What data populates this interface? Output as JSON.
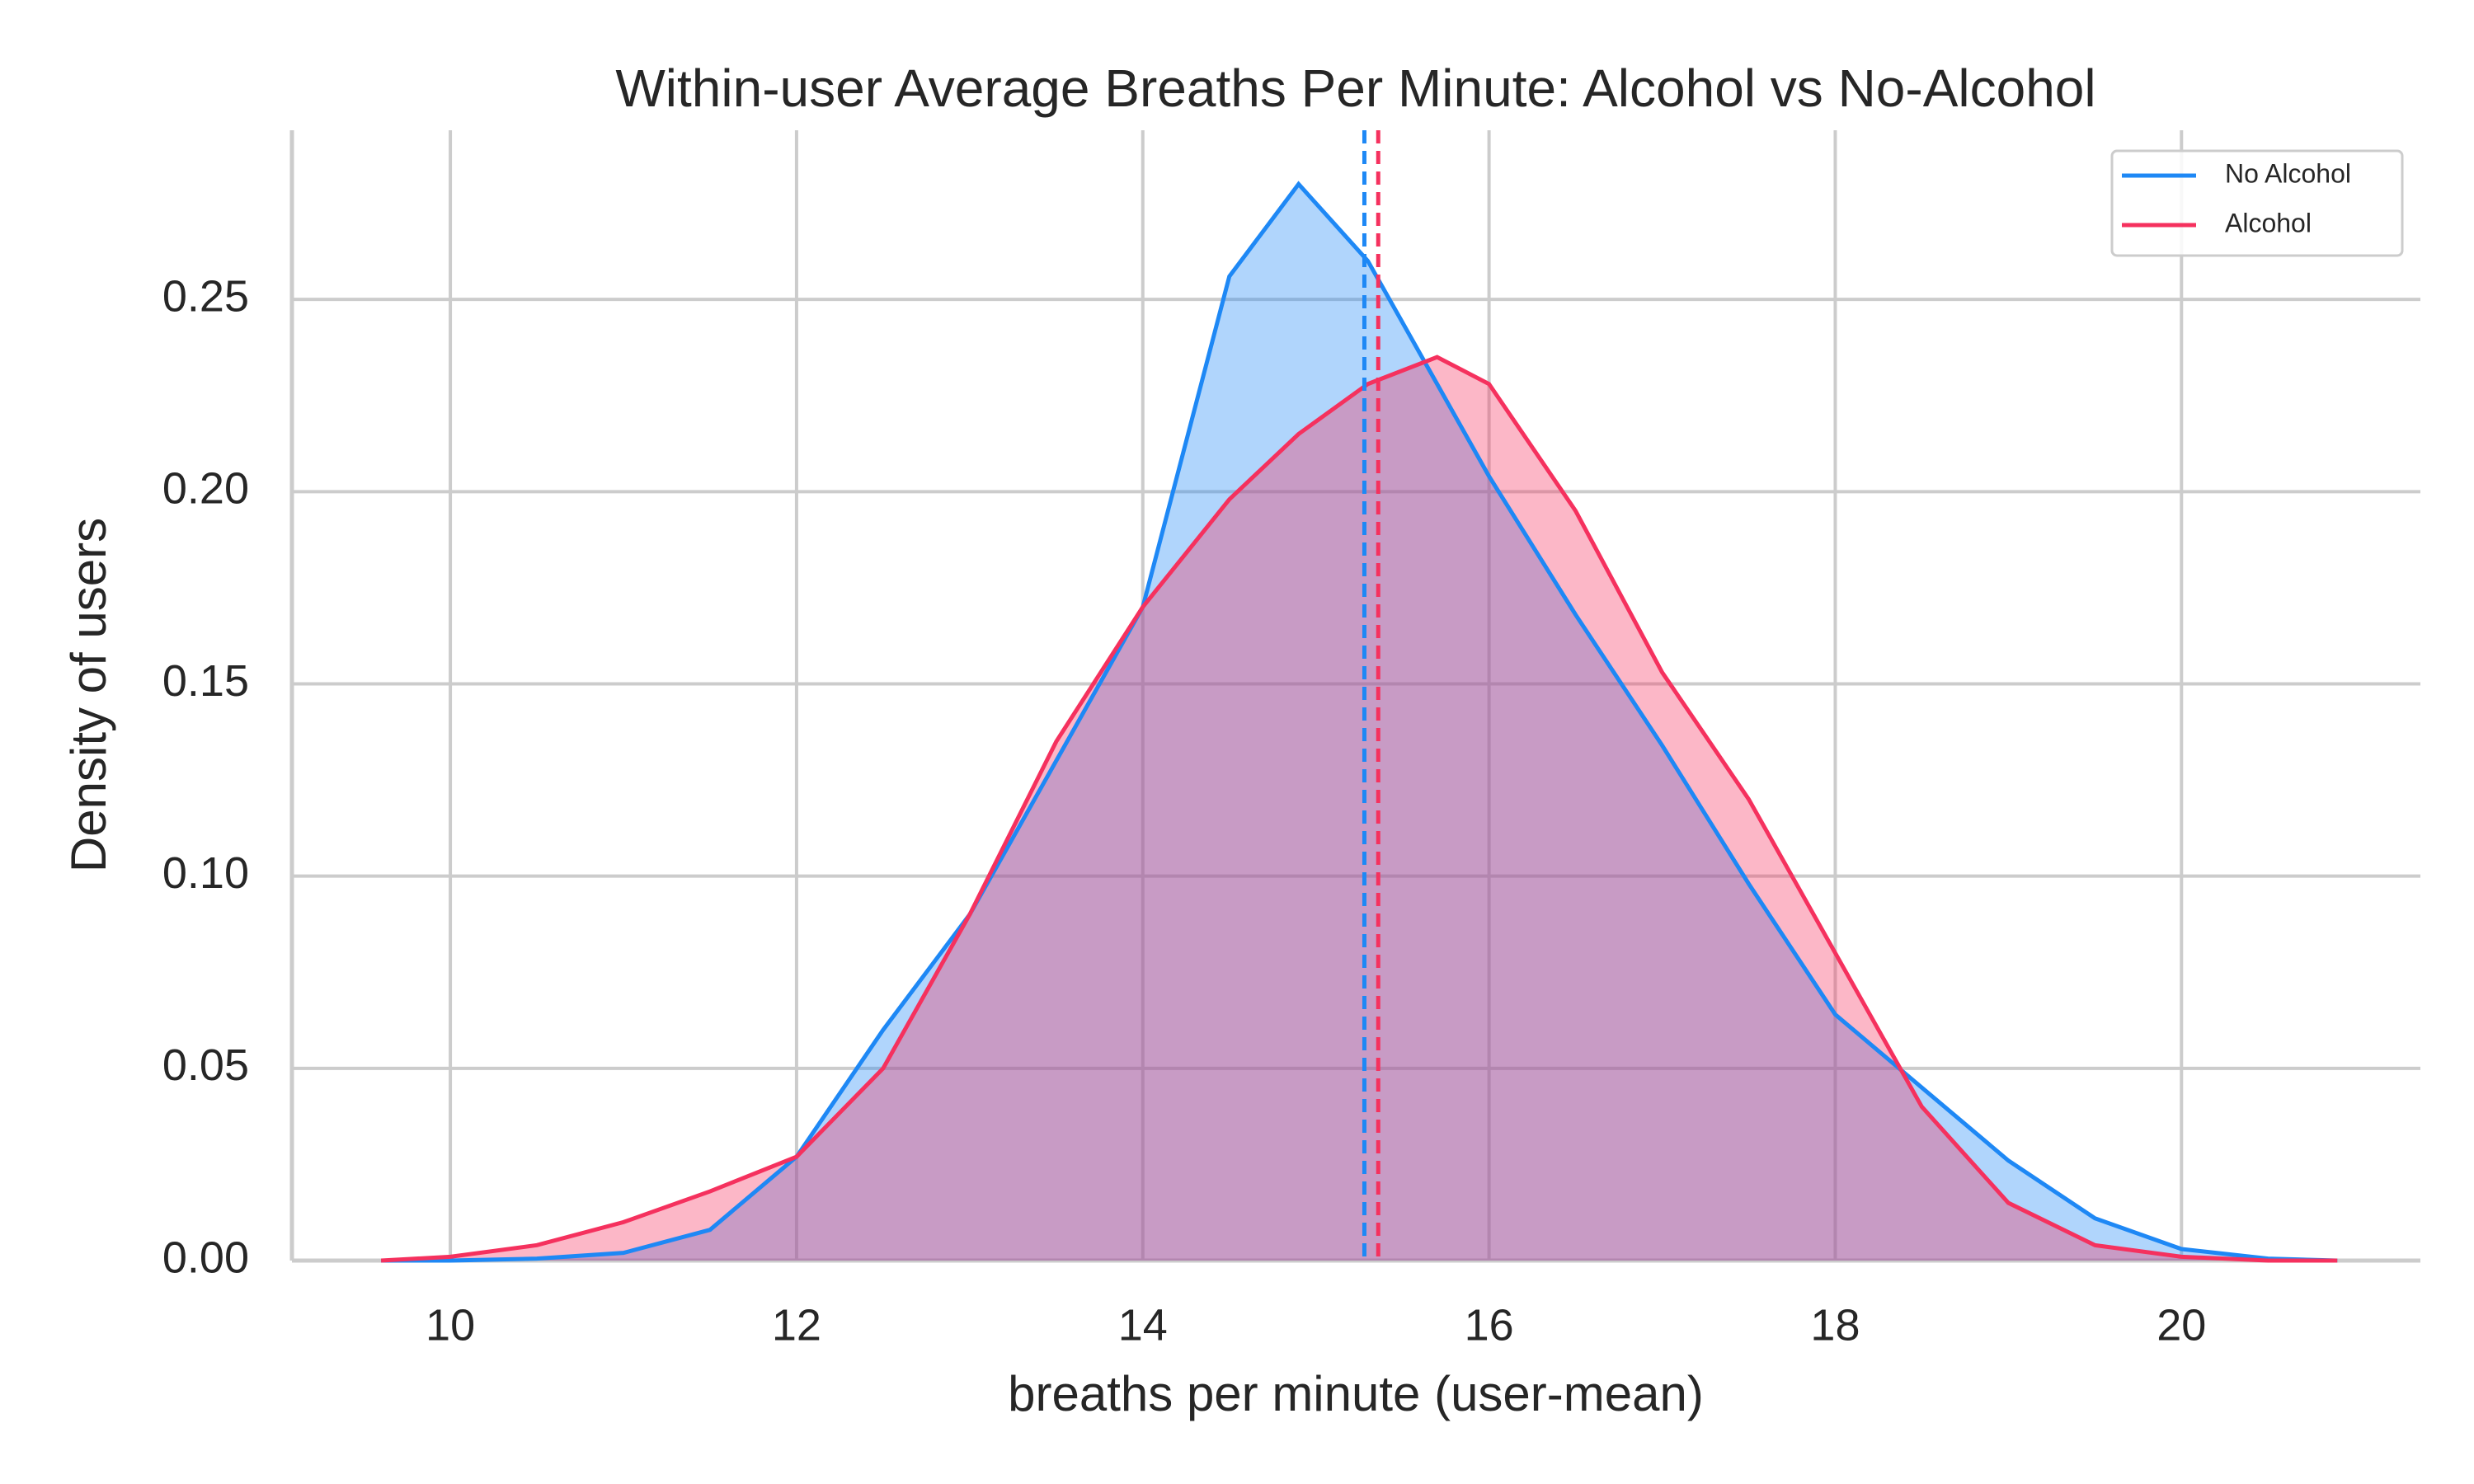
{
  "chart_data": {
    "type": "kde",
    "title": "Within-user Average Breaths Per Minute: Alcohol vs No-Alcohol",
    "x_label": "breaths per minute (user-mean)",
    "y_label": "Density of users",
    "x": [
      9.6,
      10,
      10.5,
      11,
      11.5,
      12,
      12.5,
      13,
      13.5,
      14,
      14.5,
      14.9,
      15.3,
      15.7,
      16,
      16.5,
      17,
      17.5,
      18,
      18.5,
      19,
      19.5,
      20,
      20.5,
      20.9
    ],
    "series": [
      {
        "name": "No Alcohol",
        "color": "#1e88f5",
        "mean": 15.28,
        "values": [
          0,
          0,
          0.0005,
          0.002,
          0.008,
          0.027,
          0.06,
          0.09,
          0.13,
          0.17,
          0.256,
          0.28,
          0.26,
          0.228,
          0.204,
          0.168,
          0.134,
          0.098,
          0.064,
          0.045,
          0.026,
          0.011,
          0.003,
          0.0005,
          0
        ]
      },
      {
        "name": "Alcohol",
        "color": "#f5315e",
        "mean": 15.36,
        "values": [
          0,
          0.001,
          0.004,
          0.01,
          0.018,
          0.027,
          0.05,
          0.09,
          0.135,
          0.17,
          0.198,
          0.215,
          0.228,
          0.235,
          0.228,
          0.195,
          0.153,
          0.12,
          0.08,
          0.04,
          0.015,
          0.004,
          0.001,
          0,
          0
        ]
      }
    ],
    "xlim": [
      9.085,
      21.38
    ],
    "ylim": [
      0,
      0.294
    ],
    "xticks": [
      10,
      12,
      14,
      16,
      18,
      20
    ],
    "yticks": [
      {
        "value": 0,
        "label": "0.00"
      },
      {
        "value": 0.05,
        "label": "0.05"
      },
      {
        "value": 0.1,
        "label": "0.10"
      },
      {
        "value": 0.15,
        "label": "0.15"
      },
      {
        "value": 0.2,
        "label": "0.20"
      },
      {
        "value": 0.25,
        "label": "0.25"
      }
    ],
    "grid": true,
    "legend": "upper right"
  }
}
